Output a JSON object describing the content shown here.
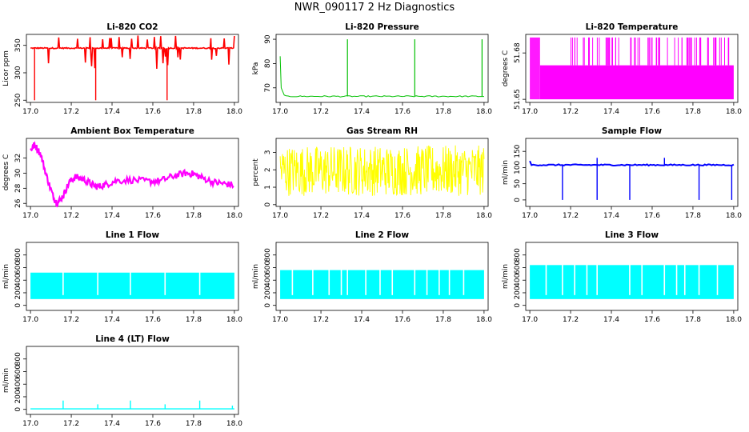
{
  "figure_title": "NWR_090117  2 Hz Diagnostics",
  "colors": {
    "red": "#ff0000",
    "green": "#00c000",
    "magenta": "#ff00ff",
    "yellow": "#ffff00",
    "blue": "#0000ff",
    "cyan": "#00ffff"
  },
  "chart_data": [
    {
      "type": "line",
      "title": "Li-820 CO2",
      "ylabel": "Licor ppm",
      "xlim": [
        16.98,
        18.02
      ],
      "ylim": [
        246,
        370
      ],
      "xticks": [
        "17.0",
        "17.2",
        "17.4",
        "17.6",
        "17.8",
        "18.0"
      ],
      "yticks": [
        250,
        300,
        350
      ],
      "color": "red",
      "series": [
        {
          "baseline": 345
        }
      ]
    },
    {
      "type": "line",
      "title": "Li-820 Pressure",
      "ylabel": "kPa",
      "xlim": [
        16.98,
        18.02
      ],
      "ylim": [
        64,
        92
      ],
      "xticks": [
        "17.0",
        "17.2",
        "17.4",
        "17.6",
        "17.8",
        "18.0"
      ],
      "yticks": [
        70,
        80,
        90
      ],
      "color": "green",
      "series": [
        {
          "baseline": 66.5,
          "spikes_x": [
            17.33,
            17.66,
            17.99
          ],
          "spike_peak": 90
        }
      ]
    },
    {
      "type": "line",
      "title": "Li-820 Temperature",
      "ylabel": "degrees C",
      "xlim": [
        16.98,
        18.02
      ],
      "ylim": [
        51.648,
        51.692
      ],
      "xticks": [
        "17.0",
        "17.2",
        "17.4",
        "17.6",
        "17.8",
        "18.0"
      ],
      "yticks": [
        "51.65",
        "51.68"
      ],
      "color": "magenta",
      "series": [
        {
          "low": 51.65,
          "high": 51.672,
          "top": 51.69
        }
      ]
    },
    {
      "type": "line",
      "title": "Ambient Box Temperature",
      "ylabel": "degrees C",
      "xlim": [
        16.98,
        18.02
      ],
      "ylim": [
        25.6,
        34.6
      ],
      "xticks": [
        "17.0",
        "17.2",
        "17.4",
        "17.6",
        "17.8",
        "18.0"
      ],
      "yticks": [
        26,
        28,
        30,
        32
      ],
      "color": "magenta",
      "series": [
        {
          "x": [
            17.0,
            17.02,
            17.05,
            17.08,
            17.11,
            17.13,
            17.16,
            17.19,
            17.22,
            17.26,
            17.3,
            17.33,
            17.37,
            17.42,
            17.5,
            17.58,
            17.64,
            17.7,
            17.76,
            17.8,
            17.84,
            17.9,
            17.95,
            18.0
          ],
          "y": [
            33.0,
            33.8,
            32.5,
            29.5,
            27.0,
            26.0,
            27.0,
            28.8,
            29.5,
            29.2,
            28.5,
            28.2,
            28.5,
            29.0,
            29.1,
            28.9,
            29.0,
            29.6,
            30.0,
            29.9,
            29.4,
            28.8,
            28.6,
            28.4
          ]
        }
      ]
    },
    {
      "type": "line",
      "title": "Gas Stream RH",
      "ylabel": "percent",
      "xlim": [
        16.98,
        18.02
      ],
      "ylim": [
        -0.1,
        3.8
      ],
      "xticks": [
        "17.0",
        "17.2",
        "17.4",
        "17.6",
        "17.8",
        "18.0"
      ],
      "yticks": [
        0,
        1,
        2,
        3
      ],
      "color": "yellow",
      "series": [
        {
          "range": [
            0.5,
            3.4
          ]
        }
      ]
    },
    {
      "type": "line",
      "title": "Sample Flow",
      "ylabel": "ml/min",
      "xlim": [
        16.98,
        18.02
      ],
      "ylim": [
        -20,
        190
      ],
      "xticks": [
        "17.0",
        "17.2",
        "17.4",
        "17.6",
        "17.8",
        "18.0"
      ],
      "yticks": [
        0,
        50,
        100,
        150
      ],
      "color": "blue",
      "series": [
        {
          "baseline": 108,
          "dips_x": [
            17.16,
            17.33,
            17.49,
            17.83,
            17.99
          ],
          "spikes_x": [
            17.33,
            17.66
          ]
        }
      ]
    },
    {
      "type": "area",
      "title": "Line 1 Flow",
      "ylabel": "ml/min",
      "xlim": [
        16.98,
        18.02
      ],
      "ylim": [
        -80,
        1000
      ],
      "xticks": [
        "17.0",
        "17.2",
        "17.4",
        "17.6",
        "17.8",
        "18.0"
      ],
      "yticks": [
        0,
        200,
        400,
        600,
        800
      ],
      "color": "cyan",
      "series": [
        {
          "low": 100,
          "high": 520,
          "gaps_x": [
            17.16,
            17.33,
            17.49,
            17.66,
            17.83
          ]
        }
      ]
    },
    {
      "type": "area",
      "title": "Line 2 Flow",
      "ylabel": "ml/min",
      "xlim": [
        16.98,
        18.02
      ],
      "ylim": [
        -80,
        1000
      ],
      "xticks": [
        "17.0",
        "17.2",
        "17.4",
        "17.6",
        "17.8",
        "18.0"
      ],
      "yticks": [
        0,
        200,
        400,
        600,
        800
      ],
      "color": "cyan",
      "series": [
        {
          "low": 100,
          "high": 560,
          "gaps_x": [
            17.06,
            17.16,
            17.24,
            17.3,
            17.33,
            17.42,
            17.49,
            17.55,
            17.66,
            17.72,
            17.78,
            17.83,
            17.9
          ]
        }
      ]
    },
    {
      "type": "area",
      "title": "Line 3 Flow",
      "ylabel": "ml/min",
      "xlim": [
        16.98,
        18.02
      ],
      "ylim": [
        -80,
        1000
      ],
      "xticks": [
        "17.0",
        "17.2",
        "17.4",
        "17.6",
        "17.8",
        "18.0"
      ],
      "yticks": [
        0,
        200,
        400,
        600,
        800
      ],
      "color": "cyan",
      "series": [
        {
          "low": 100,
          "high": 640,
          "gaps_x": [
            17.08,
            17.16,
            17.22,
            17.28,
            17.33,
            17.49,
            17.55,
            17.66,
            17.72,
            17.76,
            17.83,
            17.92
          ]
        }
      ]
    },
    {
      "type": "line",
      "title": "Line 4 (LT) Flow",
      "ylabel": "ml/min",
      "xlim": [
        16.98,
        18.02
      ],
      "ylim": [
        -80,
        1000
      ],
      "xticks": [
        "17.0",
        "17.2",
        "17.4",
        "17.6",
        "17.8",
        "18.0"
      ],
      "yticks": [
        0,
        200,
        400,
        600,
        800
      ],
      "color": "cyan",
      "series": [
        {
          "baseline": 8,
          "spikes_x": [
            17.16,
            17.33,
            17.49,
            17.66,
            17.83,
            17.99
          ],
          "spike_peaks": [
            140,
            80,
            140,
            80,
            140,
            60
          ]
        }
      ]
    }
  ]
}
